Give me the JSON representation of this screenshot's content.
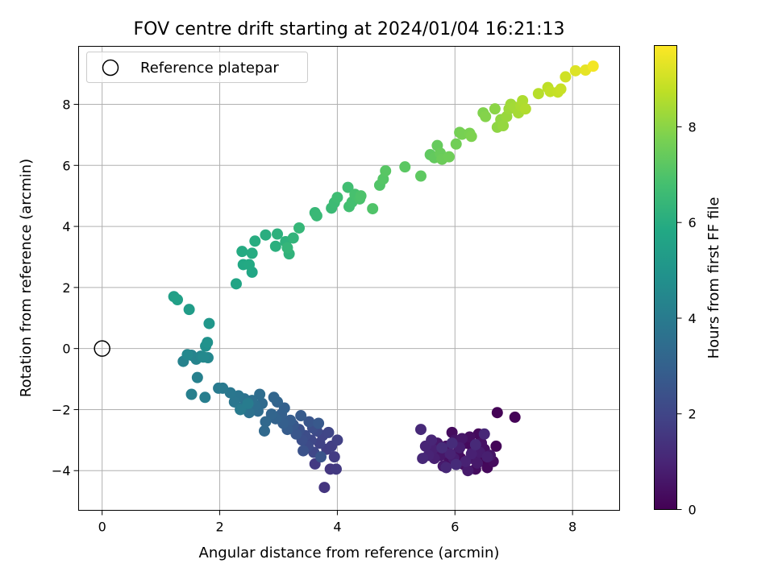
{
  "chart_data": {
    "type": "scatter",
    "title": "FOV centre drift starting at 2024/01/04 16:21:13",
    "xlabel": "Angular distance from reference (arcmin)",
    "ylabel": "Rotation from reference (arcmin)",
    "xlim": [
      -0.4,
      8.8
    ],
    "ylim": [
      -5.3,
      9.9
    ],
    "grid": true,
    "xticks": [
      "0",
      "2",
      "4",
      "6",
      "8"
    ],
    "yticks": [
      "−4",
      "−2",
      "0",
      "2",
      "4",
      "6",
      "8"
    ],
    "legend": {
      "placement": "top-left",
      "label": "Reference platepar"
    },
    "reference_point": {
      "x": 0,
      "y": 0
    },
    "colorbar": {
      "label": "Hours from first FF file",
      "range": [
        0,
        9.7
      ],
      "ticks": [
        "0",
        "2",
        "4",
        "6",
        "8"
      ],
      "colormap": "viridis"
    },
    "points": [
      {
        "x": 6.72,
        "y": -2.1,
        "c": 0.05
      },
      {
        "x": 7.02,
        "y": -2.25,
        "c": 0.08
      },
      {
        "x": 6.48,
        "y": -3.65,
        "c": 0.1
      },
      {
        "x": 6.7,
        "y": -3.2,
        "c": 0.12
      },
      {
        "x": 6.3,
        "y": -3.35,
        "c": 0.15
      },
      {
        "x": 6.1,
        "y": -3.6,
        "c": 0.18
      },
      {
        "x": 6.55,
        "y": -3.9,
        "c": 0.2
      },
      {
        "x": 6.4,
        "y": -2.8,
        "c": 0.22
      },
      {
        "x": 6.2,
        "y": -3.1,
        "c": 0.25
      },
      {
        "x": 6.65,
        "y": -3.7,
        "c": 0.28
      },
      {
        "x": 5.95,
        "y": -2.75,
        "c": 0.3
      },
      {
        "x": 6.35,
        "y": -3.95,
        "c": 0.32
      },
      {
        "x": 6.05,
        "y": -3.4,
        "c": 0.35
      },
      {
        "x": 6.25,
        "y": -2.9,
        "c": 0.38
      },
      {
        "x": 5.9,
        "y": -3.7,
        "c": 0.4
      },
      {
        "x": 6.5,
        "y": -3.3,
        "c": 0.42
      },
      {
        "x": 6.15,
        "y": -3.8,
        "c": 0.45
      },
      {
        "x": 6.45,
        "y": -3.1,
        "c": 0.48
      },
      {
        "x": 5.85,
        "y": -3.2,
        "c": 0.5
      },
      {
        "x": 6.0,
        "y": -3.0,
        "c": 0.52
      },
      {
        "x": 6.3,
        "y": -3.6,
        "c": 0.55
      },
      {
        "x": 6.6,
        "y": -3.5,
        "c": 0.58
      },
      {
        "x": 6.12,
        "y": -2.95,
        "c": 0.6
      },
      {
        "x": 5.75,
        "y": -3.5,
        "c": 0.62
      },
      {
        "x": 5.7,
        "y": -3.1,
        "c": 0.65
      },
      {
        "x": 6.38,
        "y": -3.75,
        "c": 0.68
      },
      {
        "x": 5.8,
        "y": -3.85,
        "c": 0.7
      },
      {
        "x": 6.22,
        "y": -4.0,
        "c": 0.72
      },
      {
        "x": 6.42,
        "y": -3.4,
        "c": 0.75
      },
      {
        "x": 5.98,
        "y": -3.6,
        "c": 0.78
      },
      {
        "x": 6.08,
        "y": -3.25,
        "c": 0.8
      },
      {
        "x": 6.55,
        "y": -3.55,
        "c": 0.82
      },
      {
        "x": 5.65,
        "y": -3.6,
        "c": 0.85
      },
      {
        "x": 5.62,
        "y": -3.3,
        "c": 0.88
      },
      {
        "x": 6.28,
        "y": -3.45,
        "c": 0.9
      },
      {
        "x": 6.18,
        "y": -3.7,
        "c": 0.92
      },
      {
        "x": 5.92,
        "y": -3.45,
        "c": 0.95
      },
      {
        "x": 5.55,
        "y": -3.5,
        "c": 0.98
      },
      {
        "x": 5.5,
        "y": -3.2,
        "c": 1.0
      },
      {
        "x": 5.6,
        "y": -3.0,
        "c": 1.02
      },
      {
        "x": 5.85,
        "y": -3.9,
        "c": 1.05
      },
      {
        "x": 6.5,
        "y": -2.8,
        "c": 1.08
      },
      {
        "x": 5.45,
        "y": -3.6,
        "c": 1.1
      },
      {
        "x": 5.42,
        "y": -2.65,
        "c": 1.12
      },
      {
        "x": 6.35,
        "y": -3.15,
        "c": 1.15
      },
      {
        "x": 6.02,
        "y": -3.8,
        "c": 1.18
      },
      {
        "x": 5.78,
        "y": -3.25,
        "c": 1.2
      },
      {
        "x": 5.95,
        "y": -3.1,
        "c": 1.22
      },
      {
        "x": 3.78,
        "y": -4.55,
        "c": 1.5
      },
      {
        "x": 3.88,
        "y": -3.95,
        "c": 1.55
      },
      {
        "x": 3.98,
        "y": -3.95,
        "c": 1.6
      },
      {
        "x": 3.62,
        "y": -3.78,
        "c": 1.65
      },
      {
        "x": 3.95,
        "y": -3.55,
        "c": 1.7
      },
      {
        "x": 3.82,
        "y": -3.3,
        "c": 1.75
      },
      {
        "x": 3.9,
        "y": -3.2,
        "c": 1.8
      },
      {
        "x": 4.0,
        "y": -3.0,
        "c": 1.85
      },
      {
        "x": 3.7,
        "y": -3.1,
        "c": 1.9
      },
      {
        "x": 3.75,
        "y": -2.85,
        "c": 1.95
      },
      {
        "x": 3.85,
        "y": -2.75,
        "c": 2.0
      },
      {
        "x": 3.6,
        "y": -3.4,
        "c": 2.05
      },
      {
        "x": 3.55,
        "y": -3.0,
        "c": 2.1
      },
      {
        "x": 3.65,
        "y": -2.7,
        "c": 2.15
      },
      {
        "x": 3.5,
        "y": -3.2,
        "c": 2.2
      },
      {
        "x": 3.45,
        "y": -2.85,
        "c": 2.25
      },
      {
        "x": 3.58,
        "y": -2.6,
        "c": 2.3
      },
      {
        "x": 3.4,
        "y": -3.0,
        "c": 2.35
      },
      {
        "x": 3.35,
        "y": -2.65,
        "c": 2.4
      },
      {
        "x": 3.42,
        "y": -3.35,
        "c": 2.45
      },
      {
        "x": 3.72,
        "y": -3.55,
        "c": 2.5
      },
      {
        "x": 3.52,
        "y": -2.4,
        "c": 2.55
      },
      {
        "x": 3.3,
        "y": -2.8,
        "c": 2.6
      },
      {
        "x": 3.25,
        "y": -2.5,
        "c": 2.65
      },
      {
        "x": 3.68,
        "y": -2.45,
        "c": 2.7
      },
      {
        "x": 3.38,
        "y": -2.2,
        "c": 2.75
      },
      {
        "x": 3.15,
        "y": -2.65,
        "c": 2.8
      },
      {
        "x": 3.2,
        "y": -2.35,
        "c": 2.85
      },
      {
        "x": 3.08,
        "y": -2.45,
        "c": 2.9
      },
      {
        "x": 3.05,
        "y": -2.15,
        "c": 2.95
      },
      {
        "x": 3.1,
        "y": -1.95,
        "c": 3.0
      },
      {
        "x": 2.95,
        "y": -2.3,
        "c": 3.05
      },
      {
        "x": 2.98,
        "y": -1.75,
        "c": 3.1
      },
      {
        "x": 2.88,
        "y": -2.15,
        "c": 3.15
      },
      {
        "x": 2.92,
        "y": -1.6,
        "c": 3.2
      },
      {
        "x": 2.78,
        "y": -2.4,
        "c": 3.25
      },
      {
        "x": 2.76,
        "y": -2.7,
        "c": 3.3
      },
      {
        "x": 2.72,
        "y": -1.8,
        "c": 3.35
      },
      {
        "x": 2.65,
        "y": -2.05,
        "c": 3.4
      },
      {
        "x": 2.68,
        "y": -1.5,
        "c": 3.45
      },
      {
        "x": 2.6,
        "y": -1.85,
        "c": 3.5
      },
      {
        "x": 2.55,
        "y": -1.7,
        "c": 3.55
      },
      {
        "x": 2.5,
        "y": -2.1,
        "c": 3.6
      },
      {
        "x": 2.42,
        "y": -1.65,
        "c": 3.65
      },
      {
        "x": 2.38,
        "y": -1.95,
        "c": 3.7
      },
      {
        "x": 2.32,
        "y": -1.55,
        "c": 3.75
      },
      {
        "x": 2.25,
        "y": -1.75,
        "c": 3.8
      },
      {
        "x": 2.18,
        "y": -1.45,
        "c": 3.85
      },
      {
        "x": 2.05,
        "y": -1.3,
        "c": 3.9
      },
      {
        "x": 1.98,
        "y": -1.3,
        "c": 3.95
      },
      {
        "x": 2.35,
        "y": -2.0,
        "c": 4.0
      },
      {
        "x": 2.48,
        "y": -1.8,
        "c": 4.05
      },
      {
        "x": 1.75,
        "y": -1.6,
        "c": 4.1
      },
      {
        "x": 1.52,
        "y": -1.5,
        "c": 4.15
      },
      {
        "x": 1.62,
        "y": -0.95,
        "c": 4.2
      },
      {
        "x": 1.38,
        "y": -0.42,
        "c": 4.25
      },
      {
        "x": 1.52,
        "y": -0.22,
        "c": 4.3
      },
      {
        "x": 1.6,
        "y": -0.35,
        "c": 4.35
      },
      {
        "x": 1.68,
        "y": -0.25,
        "c": 4.4
      },
      {
        "x": 1.8,
        "y": -0.3,
        "c": 4.45
      },
      {
        "x": 1.45,
        "y": -0.2,
        "c": 4.5
      },
      {
        "x": 1.72,
        "y": -0.28,
        "c": 4.55
      },
      {
        "x": 1.76,
        "y": 0.08,
        "c": 4.8
      },
      {
        "x": 1.79,
        "y": 0.2,
        "c": 4.9
      },
      {
        "x": 1.82,
        "y": 0.82,
        "c": 5.1
      },
      {
        "x": 1.48,
        "y": 1.28,
        "c": 5.3
      },
      {
        "x": 1.22,
        "y": 1.7,
        "c": 5.45
      },
      {
        "x": 1.28,
        "y": 1.6,
        "c": 5.5
      },
      {
        "x": 2.28,
        "y": 2.12,
        "c": 5.65
      },
      {
        "x": 2.55,
        "y": 2.5,
        "c": 5.75
      },
      {
        "x": 2.4,
        "y": 2.75,
        "c": 5.8
      },
      {
        "x": 2.5,
        "y": 2.75,
        "c": 5.85
      },
      {
        "x": 2.38,
        "y": 3.18,
        "c": 5.9
      },
      {
        "x": 2.55,
        "y": 3.12,
        "c": 5.95
      },
      {
        "x": 2.6,
        "y": 3.52,
        "c": 6.0
      },
      {
        "x": 2.78,
        "y": 3.72,
        "c": 6.05
      },
      {
        "x": 2.95,
        "y": 3.35,
        "c": 6.1
      },
      {
        "x": 2.98,
        "y": 3.75,
        "c": 6.15
      },
      {
        "x": 3.12,
        "y": 3.5,
        "c": 6.2
      },
      {
        "x": 3.18,
        "y": 3.1,
        "c": 6.25
      },
      {
        "x": 3.25,
        "y": 3.62,
        "c": 6.3
      },
      {
        "x": 3.15,
        "y": 3.3,
        "c": 6.35
      },
      {
        "x": 3.35,
        "y": 3.95,
        "c": 6.4
      },
      {
        "x": 3.62,
        "y": 4.45,
        "c": 6.45
      },
      {
        "x": 3.65,
        "y": 4.35,
        "c": 6.5
      },
      {
        "x": 3.9,
        "y": 4.6,
        "c": 6.55
      },
      {
        "x": 3.95,
        "y": 4.78,
        "c": 6.6
      },
      {
        "x": 4.0,
        "y": 4.95,
        "c": 6.65
      },
      {
        "x": 4.18,
        "y": 5.28,
        "c": 6.7
      },
      {
        "x": 4.2,
        "y": 4.65,
        "c": 6.75
      },
      {
        "x": 4.25,
        "y": 4.8,
        "c": 6.8
      },
      {
        "x": 4.3,
        "y": 5.05,
        "c": 6.85
      },
      {
        "x": 4.38,
        "y": 4.9,
        "c": 6.9
      },
      {
        "x": 4.4,
        "y": 5.0,
        "c": 6.95
      },
      {
        "x": 4.6,
        "y": 4.58,
        "c": 7.0
      },
      {
        "x": 4.72,
        "y": 5.35,
        "c": 7.05
      },
      {
        "x": 4.78,
        "y": 5.55,
        "c": 7.1
      },
      {
        "x": 4.82,
        "y": 5.82,
        "c": 7.15
      },
      {
        "x": 5.15,
        "y": 5.95,
        "c": 7.2
      },
      {
        "x": 5.42,
        "y": 5.65,
        "c": 7.25
      },
      {
        "x": 5.58,
        "y": 6.35,
        "c": 7.3
      },
      {
        "x": 5.65,
        "y": 6.25,
        "c": 7.35
      },
      {
        "x": 5.7,
        "y": 6.65,
        "c": 7.4
      },
      {
        "x": 5.75,
        "y": 6.4,
        "c": 7.45
      },
      {
        "x": 5.78,
        "y": 6.2,
        "c": 7.5
      },
      {
        "x": 5.9,
        "y": 6.28,
        "c": 7.55
      },
      {
        "x": 6.02,
        "y": 6.7,
        "c": 7.6
      },
      {
        "x": 6.08,
        "y": 7.08,
        "c": 7.65
      },
      {
        "x": 6.12,
        "y": 7.02,
        "c": 7.7
      },
      {
        "x": 6.25,
        "y": 7.05,
        "c": 7.75
      },
      {
        "x": 6.28,
        "y": 6.95,
        "c": 7.8
      },
      {
        "x": 6.48,
        "y": 7.72,
        "c": 7.85
      },
      {
        "x": 6.52,
        "y": 7.6,
        "c": 7.9
      },
      {
        "x": 6.68,
        "y": 7.85,
        "c": 8.0
      },
      {
        "x": 6.72,
        "y": 7.25,
        "c": 8.05
      },
      {
        "x": 6.78,
        "y": 7.5,
        "c": 8.1
      },
      {
        "x": 6.82,
        "y": 7.3,
        "c": 8.15
      },
      {
        "x": 6.88,
        "y": 7.6,
        "c": 8.2
      },
      {
        "x": 6.92,
        "y": 7.85,
        "c": 8.25
      },
      {
        "x": 6.95,
        "y": 8.0,
        "c": 8.3
      },
      {
        "x": 7.02,
        "y": 7.9,
        "c": 8.35
      },
      {
        "x": 7.08,
        "y": 7.72,
        "c": 8.4
      },
      {
        "x": 7.12,
        "y": 7.95,
        "c": 8.45
      },
      {
        "x": 7.15,
        "y": 8.12,
        "c": 8.5
      },
      {
        "x": 7.2,
        "y": 7.85,
        "c": 8.55
      },
      {
        "x": 7.42,
        "y": 8.35,
        "c": 8.65
      },
      {
        "x": 7.58,
        "y": 8.55,
        "c": 8.75
      },
      {
        "x": 7.62,
        "y": 8.42,
        "c": 8.8
      },
      {
        "x": 7.75,
        "y": 8.4,
        "c": 8.85
      },
      {
        "x": 7.8,
        "y": 8.5,
        "c": 8.9
      },
      {
        "x": 7.88,
        "y": 8.9,
        "c": 9.0
      },
      {
        "x": 8.05,
        "y": 9.1,
        "c": 9.2
      },
      {
        "x": 8.22,
        "y": 9.12,
        "c": 9.35
      },
      {
        "x": 8.35,
        "y": 9.25,
        "c": 9.55
      }
    ]
  }
}
